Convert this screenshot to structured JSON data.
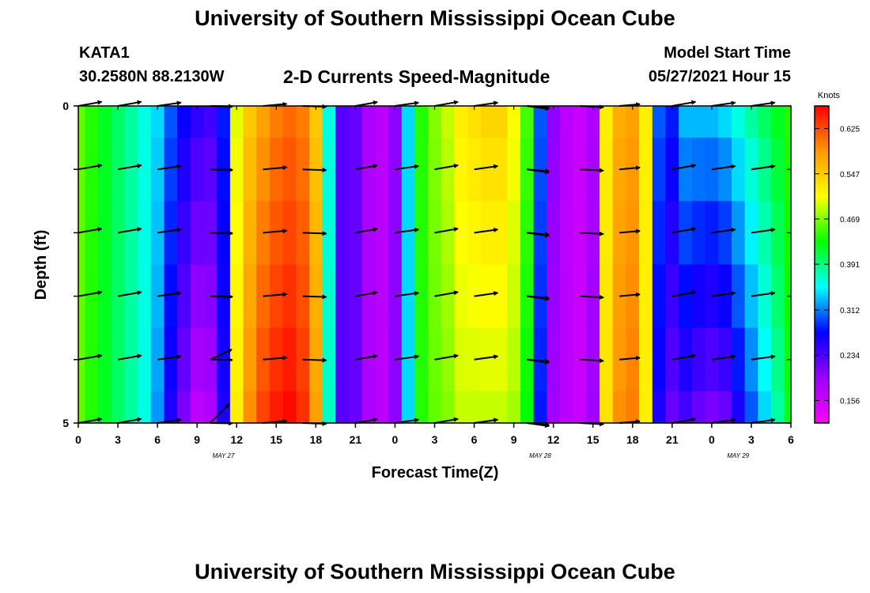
{
  "header": {
    "title": "University of Southern Mississippi Ocean Cube",
    "station": "KATA1",
    "coords": "30.2580N  88.2130W",
    "subtitle": "2-D Currents Speed-Magnitude",
    "start_label": "Model Start Time",
    "start_value": "05/27/2021 Hour 15"
  },
  "footer": {
    "title": "University of Southern Mississippi Ocean Cube"
  },
  "chart_data": {
    "type": "heatmap",
    "xlabel": "Forecast Time(Z)",
    "ylabel": "Depth (ft)",
    "x_ticks": [
      "0",
      "3",
      "6",
      "9",
      "12",
      "15",
      "18",
      "21",
      "0",
      "3",
      "6",
      "9",
      "12",
      "15",
      "18",
      "21",
      "0",
      "3",
      "6"
    ],
    "y_ticks": [
      "0",
      "5"
    ],
    "date_labels": [
      {
        "label": "MAY 27",
        "hour": 11
      },
      {
        "label": "MAY 28",
        "hour": 35
      },
      {
        "label": "MAY 29",
        "hour": 50
      }
    ],
    "xlim": [
      0,
      54
    ],
    "ylim": [
      0,
      5
    ],
    "colorbar": {
      "label": "Knots",
      "min": 0.117,
      "max": 0.664,
      "ticks": [
        "0.625",
        "0.547",
        "0.469",
        "0.391",
        "0.312",
        "0.234",
        "0.156"
      ],
      "tick_values": [
        0.625,
        0.547,
        0.469,
        0.391,
        0.312,
        0.234,
        0.156
      ],
      "colors": [
        "#ff00ff",
        "#9900ff",
        "#0000ff",
        "#00ffff",
        "#00ff00",
        "#ffff00",
        "#ff9900",
        "#ff0000"
      ]
    },
    "depth_levels": [
      0,
      1,
      2,
      3,
      4,
      5
    ],
    "surface_profile": [
      0.46,
      0.44,
      0.42,
      0.4,
      0.38,
      0.36,
      0.34,
      0.3,
      0.27,
      0.25,
      0.24,
      0.28,
      0.5,
      0.55,
      0.58,
      0.6,
      0.61,
      0.6,
      0.55,
      0.36,
      0.23,
      0.22,
      0.18,
      0.17,
      0.2,
      0.34,
      0.44,
      0.47,
      0.49,
      0.52,
      0.53,
      0.54,
      0.54,
      0.51,
      0.45,
      0.3,
      0.2,
      0.17,
      0.16,
      0.18,
      0.52,
      0.57,
      0.58,
      0.52,
      0.3,
      0.28,
      0.33,
      0.33,
      0.33,
      0.34,
      0.36,
      0.38,
      0.4,
      0.42,
      0.44
    ],
    "depth_offsets": [
      0.0,
      0.0,
      0.0,
      0.0,
      0.0,
      0.0,
      -0.02,
      -0.04,
      -0.06,
      -0.08,
      -0.06,
      -0.02,
      0.02,
      0.04,
      0.05,
      0.05,
      0.05,
      0.04,
      0.03,
      0.01,
      0.0,
      0.0,
      0.0,
      0.0,
      0.0,
      0.0,
      0.0,
      -0.01,
      -0.02,
      -0.03,
      -0.04,
      -0.05,
      -0.05,
      -0.03,
      -0.02,
      -0.02,
      -0.01,
      0.0,
      0.0,
      0.01,
      0.01,
      0.02,
      0.02,
      0.0,
      -0.04,
      -0.06,
      -0.09,
      -0.11,
      -0.12,
      -0.12,
      -0.1,
      -0.08,
      -0.06,
      -0.04,
      -0.02
    ],
    "vectors_hours": [
      0,
      3,
      6,
      10,
      10,
      14,
      17,
      21,
      24,
      27,
      30,
      34,
      34,
      38,
      41,
      45,
      48,
      51
    ],
    "vector_angles_deg": [
      10,
      10,
      8,
      -2,
      -1,
      5,
      -2,
      10,
      8,
      10,
      8,
      -8,
      -5,
      -3,
      5,
      10,
      8,
      8
    ],
    "vector_lengths_px": [
      30,
      30,
      30,
      28,
      28,
      30,
      30,
      28,
      30,
      30,
      30,
      28,
      28,
      30,
      26,
      30,
      30,
      30
    ],
    "special_vectors": [
      {
        "hour": 10,
        "depth": 5,
        "angle_deg": 45,
        "length_px": 34
      },
      {
        "hour": 10,
        "depth": 4,
        "angle_deg": 25,
        "length_px": 30
      }
    ]
  }
}
